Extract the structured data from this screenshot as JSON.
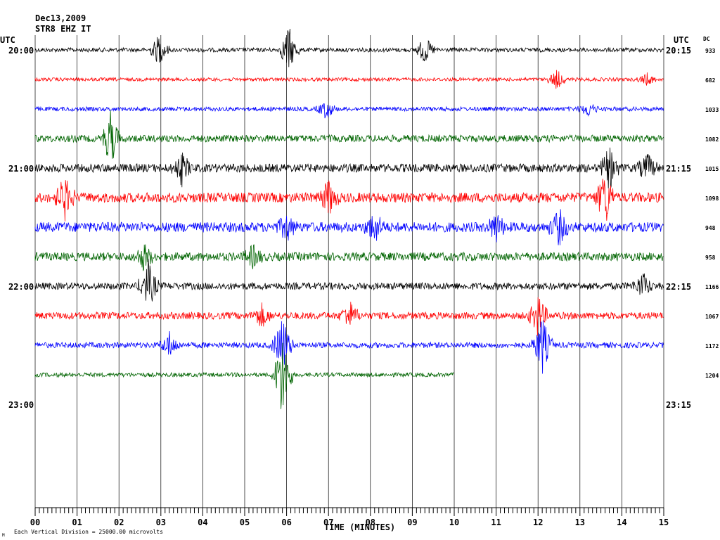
{
  "header": {
    "date": "Dec13,2009",
    "station": "STR8 EHZ IT"
  },
  "left_axis_title": "UTC",
  "right_axis_title": "UTC",
  "dc_title": "DC",
  "footer_note": "Each Vertical Division = 25000.00 microvolts",
  "footer_mark": "M",
  "chart_data": {
    "type": "helicorder",
    "xlabel": "TIME (MINUTES)",
    "x_ticks": [
      "00",
      "01",
      "02",
      "03",
      "04",
      "05",
      "06",
      "07",
      "08",
      "09",
      "10",
      "11",
      "12",
      "13",
      "14",
      "15"
    ],
    "xlim": [
      0,
      15
    ],
    "grid": "vertical lines at each minute",
    "left_time_labels": [
      "20:00",
      "21:00",
      "22:00",
      "23:00"
    ],
    "right_time_labels": [
      "20:15",
      "21:15",
      "22:15",
      "23:15"
    ],
    "traces": [
      {
        "row": 0,
        "color": "#000000",
        "dc": "933",
        "end_minute": 15
      },
      {
        "row": 1,
        "color": "#ff0000",
        "dc": "682",
        "end_minute": 15
      },
      {
        "row": 2,
        "color": "#0000ff",
        "dc": "1033",
        "end_minute": 15
      },
      {
        "row": 3,
        "color": "#006400",
        "dc": "1082",
        "end_minute": 15
      },
      {
        "row": 4,
        "color": "#000000",
        "dc": "1015",
        "end_minute": 15
      },
      {
        "row": 5,
        "color": "#ff0000",
        "dc": "1098",
        "end_minute": 15
      },
      {
        "row": 6,
        "color": "#0000ff",
        "dc": "948",
        "end_minute": 15
      },
      {
        "row": 7,
        "color": "#006400",
        "dc": "958",
        "end_minute": 15
      },
      {
        "row": 8,
        "color": "#000000",
        "dc": "1166",
        "end_minute": 15
      },
      {
        "row": 9,
        "color": "#ff0000",
        "dc": "1067",
        "end_minute": 15
      },
      {
        "row": 10,
        "color": "#0000ff",
        "dc": "1172",
        "end_minute": 15
      },
      {
        "row": 11,
        "color": "#006400",
        "dc": "1204",
        "end_minute": 10
      }
    ]
  }
}
